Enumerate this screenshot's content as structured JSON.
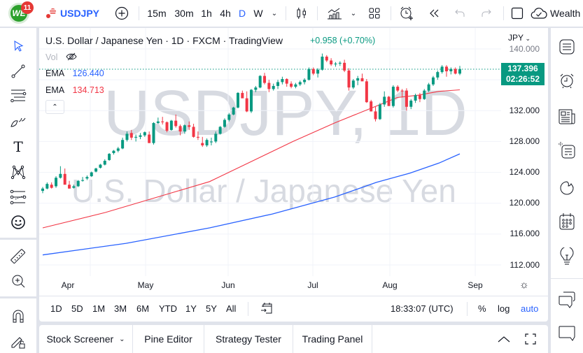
{
  "topbar": {
    "logo_text": "WE",
    "notification_count": "11",
    "symbol": "USDJPY",
    "intervals": [
      "15m",
      "30m",
      "1h",
      "4h",
      "D",
      "W"
    ],
    "active_interval": "D",
    "right_label": "Wealth"
  },
  "chart": {
    "title": "U.S. Dollar / Japanese Yen · 1D · FXCM · TradingView",
    "change": "+0.958 (+0.70%)",
    "vol_label": "Vol",
    "indicators": [
      {
        "name": "EMA",
        "value": "126.440",
        "color": "#2962ff"
      },
      {
        "name": "EMA",
        "value": "134.713",
        "color": "#f23645"
      }
    ],
    "watermark_symbol": "USDJPY, 1D",
    "watermark_name": "U.S. Dollar / Japanese Yen",
    "currency": "JPY",
    "last_price": "137.396",
    "countdown": "02:26:52",
    "price_labels": [
      "140.000",
      "132.000",
      "128.000",
      "124.000",
      "120.000",
      "116.000",
      "112.000"
    ],
    "time_labels": [
      "Apr",
      "May",
      "Jun",
      "Jul",
      "Aug",
      "Sep"
    ],
    "colors": {
      "up": "#089981",
      "down": "#f23645",
      "ema_fast": "#f23645",
      "ema_slow": "#2962ff",
      "price_tag": "#089981"
    }
  },
  "range_bar": {
    "ranges": [
      "1D",
      "5D",
      "1M",
      "3M",
      "6M",
      "YTD",
      "1Y",
      "5Y",
      "All"
    ],
    "clock": "18:33:07 (UTC)",
    "percent": "%",
    "log": "log",
    "auto": "auto"
  },
  "bottom_tabs": [
    "Stock Screener",
    "Pine Editor",
    "Strategy Tester",
    "Trading Panel"
  ],
  "chart_data": {
    "type": "candlestick",
    "title": "U.S. Dollar / Japanese Yen · 1D · FXCM",
    "x_ticks": [
      "Apr",
      "May",
      "Jun",
      "Jul",
      "Aug",
      "Sep"
    ],
    "y_ticks": [
      112,
      116,
      120,
      124,
      128,
      132,
      140
    ],
    "ylim": [
      110.5,
      141.5
    ],
    "candles_approx": [
      [
        121.6,
        122.1,
        121.3,
        121.9
      ],
      [
        121.9,
        122.7,
        121.8,
        122.5
      ],
      [
        122.4,
        122.7,
        121.9,
        122.0
      ],
      [
        122.2,
        123.5,
        122.0,
        123.3
      ],
      [
        123.3,
        124.8,
        123.2,
        123.8
      ],
      [
        123.8,
        124.5,
        122.9,
        122.4
      ],
      [
        122.4,
        122.9,
        121.9,
        121.9
      ],
      [
        122.0,
        122.4,
        121.9,
        122.2
      ],
      [
        122.2,
        123.0,
        122.1,
        122.9
      ],
      [
        122.9,
        123.4,
        122.8,
        123.0
      ],
      [
        123.2,
        123.6,
        123.0,
        123.4
      ],
      [
        123.5,
        124.1,
        123.4,
        124.0
      ],
      [
        124.1,
        124.6,
        124.0,
        124.5
      ],
      [
        124.6,
        125.1,
        124.5,
        125.0
      ],
      [
        125.0,
        125.7,
        124.9,
        125.5
      ],
      [
        125.6,
        126.5,
        125.5,
        126.4
      ],
      [
        126.5,
        126.9,
        126.3,
        126.8
      ],
      [
        126.8,
        127.3,
        126.6,
        127.1
      ],
      [
        127.1,
        128.5,
        127.0,
        128.2
      ],
      [
        128.2,
        129.3,
        128.0,
        129.0
      ],
      [
        129.1,
        129.5,
        128.2,
        128.5
      ],
      [
        128.5,
        128.9,
        128.0,
        128.6
      ],
      [
        128.6,
        129.1,
        128.3,
        128.8
      ],
      [
        128.8,
        129.3,
        128.6,
        129.2
      ],
      [
        128.9,
        129.3,
        127.8,
        127.8
      ],
      [
        127.8,
        130.5,
        127.6,
        130.4
      ],
      [
        130.4,
        131.1,
        130.3,
        130.6
      ],
      [
        130.6,
        131.2,
        130.2,
        130.5
      ],
      [
        130.5,
        130.6,
        129.2,
        129.4
      ],
      [
        129.5,
        130.8,
        129.4,
        130.7
      ],
      [
        130.7,
        131.5,
        129.8,
        130.0
      ],
      [
        130.0,
        130.2,
        128.8,
        129.3
      ],
      [
        129.3,
        130.2,
        129.0,
        130.1
      ],
      [
        130.1,
        130.6,
        129.5,
        129.9
      ],
      [
        129.9,
        130.3,
        128.5,
        128.6
      ],
      [
        128.6,
        129.3,
        128.2,
        128.5
      ],
      [
        127.8,
        128.6,
        127.3,
        127.5
      ],
      [
        127.5,
        128.4,
        127.3,
        128.2
      ],
      [
        127.9,
        128.5,
        127.5,
        128.0
      ],
      [
        128.0,
        129.3,
        127.8,
        129.0
      ],
      [
        129.0,
        130.0,
        128.9,
        129.9
      ],
      [
        129.9,
        131.0,
        129.8,
        130.8
      ],
      [
        130.8,
        131.7,
        130.6,
        131.5
      ],
      [
        131.5,
        132.5,
        131.4,
        132.4
      ],
      [
        132.4,
        134.4,
        132.3,
        134.3
      ],
      [
        134.3,
        134.6,
        133.9,
        133.6
      ],
      [
        133.6,
        134.5,
        131.8,
        131.9
      ],
      [
        131.9,
        134.8,
        131.7,
        134.7
      ],
      [
        134.7,
        135.2,
        134.4,
        135.0
      ],
      [
        135.0,
        136.6,
        134.9,
        136.5
      ],
      [
        136.5,
        136.9,
        135.4,
        135.6
      ],
      [
        135.6,
        136.0,
        134.4,
        134.8
      ],
      [
        134.8,
        135.5,
        134.6,
        135.2
      ],
      [
        135.2,
        136.0,
        134.8,
        135.7
      ],
      [
        135.7,
        136.4,
        135.4,
        136.1
      ],
      [
        136.1,
        136.2,
        135.1,
        135.5
      ],
      [
        135.5,
        135.8,
        134.9,
        135.1
      ],
      [
        135.1,
        135.6,
        134.9,
        135.4
      ],
      [
        135.4,
        135.9,
        135.2,
        135.7
      ],
      [
        135.7,
        136.2,
        135.4,
        136.0
      ],
      [
        136.0,
        137.6,
        135.9,
        137.4
      ],
      [
        137.4,
        137.6,
        136.6,
        136.8
      ],
      [
        136.8,
        137.5,
        136.3,
        137.3
      ],
      [
        137.3,
        139.4,
        137.2,
        139.0
      ],
      [
        139.0,
        139.2,
        138.3,
        138.5
      ],
      [
        138.5,
        138.8,
        137.8,
        138.0
      ],
      [
        138.0,
        138.3,
        137.7,
        138.1
      ],
      [
        138.1,
        138.4,
        137.8,
        138.2
      ],
      [
        138.2,
        138.6,
        137.0,
        137.2
      ],
      [
        137.2,
        137.5,
        134.6,
        135.0
      ],
      [
        135.0,
        136.1,
        134.8,
        135.9
      ],
      [
        135.9,
        136.5,
        135.3,
        136.2
      ],
      [
        136.2,
        136.8,
        136.0,
        135.8
      ],
      [
        135.8,
        136.1,
        133.0,
        133.1
      ],
      [
        133.2,
        133.4,
        131.9,
        131.9
      ],
      [
        131.9,
        132.5,
        130.6,
        130.9
      ],
      [
        130.9,
        133.0,
        130.8,
        132.8
      ],
      [
        132.8,
        134.5,
        132.5,
        133.8
      ],
      [
        133.8,
        133.9,
        132.6,
        132.6
      ],
      [
        132.6,
        135.3,
        132.4,
        135.1
      ],
      [
        135.1,
        135.3,
        134.4,
        134.6
      ],
      [
        134.6,
        134.8,
        133.7,
        134.5
      ],
      [
        134.6,
        134.9,
        132.0,
        132.5
      ],
      [
        132.5,
        133.5,
        132.2,
        133.3
      ],
      [
        133.3,
        134.2,
        133.0,
        134.0
      ],
      [
        134.0,
        134.3,
        133.1,
        133.5
      ],
      [
        133.5,
        134.8,
        133.4,
        134.6
      ],
      [
        134.6,
        135.6,
        134.4,
        135.4
      ],
      [
        135.4,
        136.5,
        135.2,
        136.3
      ],
      [
        136.3,
        137.2,
        136.0,
        137.0
      ],
      [
        137.0,
        137.9,
        136.8,
        137.7
      ],
      [
        137.7,
        137.9,
        136.4,
        137.1
      ],
      [
        137.1,
        137.6,
        136.7,
        137.4
      ],
      [
        137.4,
        137.6,
        136.7,
        136.8
      ],
      [
        136.8,
        137.8,
        136.6,
        137.4
      ]
    ],
    "series": [
      {
        "name": "EMA (fast)",
        "color": "#f23645",
        "last_value": 134.713,
        "points_approx": [
          [
            0,
            116.8
          ],
          [
            15,
            118.8
          ],
          [
            30,
            121.2
          ],
          [
            40,
            122.8
          ],
          [
            50,
            125.4
          ],
          [
            60,
            128.0
          ],
          [
            70,
            130.4
          ],
          [
            80,
            132.6
          ],
          [
            85,
            133.7
          ],
          [
            90,
            134.0
          ],
          [
            95,
            134.5
          ],
          [
            100,
            134.7
          ]
        ]
      },
      {
        "name": "EMA (slow)",
        "color": "#2962ff",
        "last_value": 126.44,
        "points_approx": [
          [
            0,
            113.3
          ],
          [
            20,
            114.8
          ],
          [
            40,
            116.8
          ],
          [
            55,
            118.6
          ],
          [
            70,
            120.8
          ],
          [
            80,
            122.7
          ],
          [
            88,
            123.9
          ],
          [
            95,
            125.2
          ],
          [
            100,
            126.4
          ]
        ]
      }
    ],
    "last_price": 137.396
  },
  "left_tools": [
    "cursor",
    "trend-line",
    "fib-retracement",
    "brush",
    "text",
    "pattern",
    "forecast",
    "emoji",
    "ruler",
    "zoom-in",
    "magnet",
    "lock-drawings"
  ],
  "right_tools": [
    "watchlist",
    "alerts",
    "news",
    "data-window",
    "hotlist",
    "calendar",
    "ideas",
    "chats",
    "private-chats"
  ]
}
